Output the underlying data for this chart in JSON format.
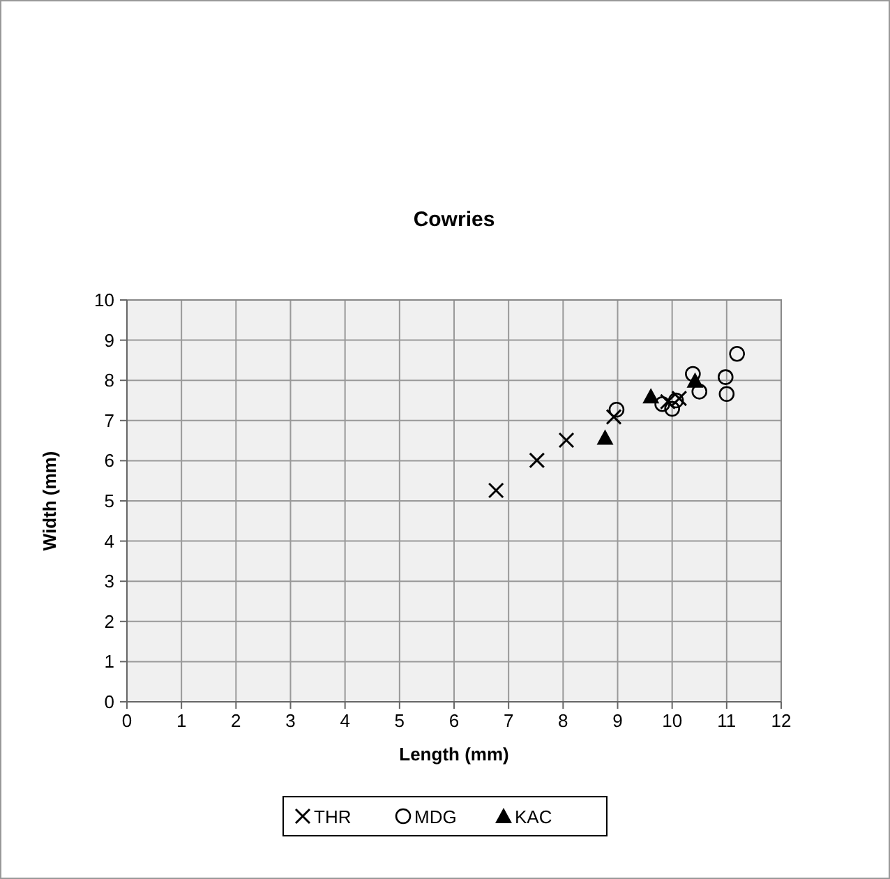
{
  "chart_data": {
    "type": "scatter",
    "title": "Cowries",
    "xlabel": "Length (mm)",
    "ylabel": "Width (mm)",
    "xlim": [
      0,
      12
    ],
    "xticks": [
      0,
      1,
      2,
      3,
      4,
      5,
      6,
      7,
      8,
      9,
      10,
      11,
      12
    ],
    "ylim": [
      0,
      10
    ],
    "yticks": [
      0,
      1,
      2,
      3,
      4,
      5,
      6,
      7,
      8,
      9,
      10
    ],
    "grid": true,
    "legend": "bottom",
    "series": [
      {
        "name": "THR",
        "color": "#000000",
        "marker": "cross",
        "x": [
          6.77,
          7.52,
          8.06,
          8.93,
          9.92,
          10.13
        ],
        "values": [
          5.26,
          6.01,
          6.51,
          7.09,
          7.47,
          7.55
        ]
      },
      {
        "name": "MDG",
        "color": "#000000",
        "marker": "circle",
        "x": [
          8.98,
          9.82,
          10.0,
          10.07,
          10.38,
          10.5,
          10.98,
          11.0,
          11.19
        ],
        "values": [
          7.27,
          7.41,
          7.29,
          7.5,
          8.16,
          7.72,
          8.08,
          7.66,
          8.66
        ]
      },
      {
        "name": "KAC",
        "color": "#000000",
        "marker": "triangle",
        "x": [
          9.61,
          8.77,
          10.42
        ],
        "values": [
          7.6,
          6.57,
          7.99
        ]
      }
    ]
  }
}
